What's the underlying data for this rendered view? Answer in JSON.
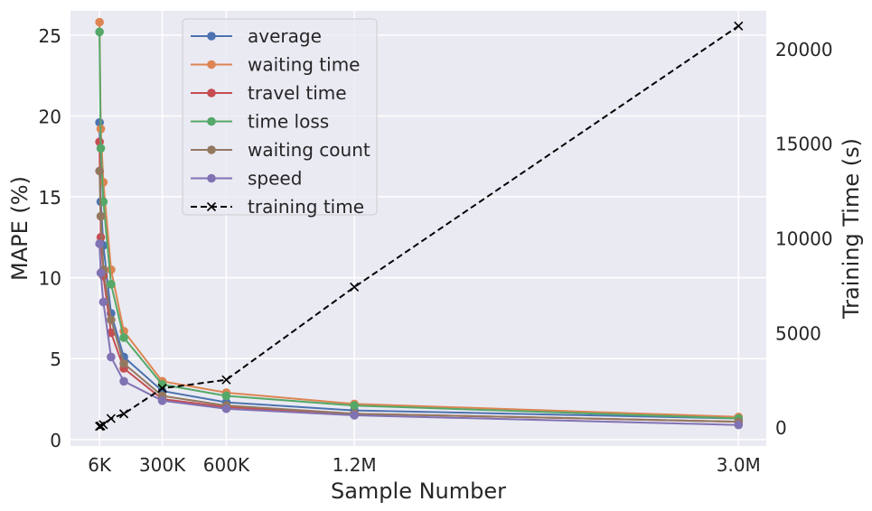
{
  "chart_data": {
    "type": "line",
    "title": "",
    "xlabel": "Sample Number",
    "ylabel": "MAPE (%)",
    "y2label": "Training Time (s)",
    "xlim": [
      -130000,
      3130000
    ],
    "ylim": [
      -0.4,
      26.5
    ],
    "y2lim": [
      -1000,
      22000
    ],
    "x_ticks": [
      {
        "value": 6000,
        "label": "6K"
      },
      {
        "value": 300000,
        "label": "300K"
      },
      {
        "value": 600000,
        "label": "600K"
      },
      {
        "value": 1200000,
        "label": "1.2M"
      },
      {
        "value": 3000000,
        "label": "3.0M"
      }
    ],
    "y_ticks": [
      0,
      5,
      10,
      15,
      20,
      25
    ],
    "y2_ticks": [
      0,
      5000,
      10000,
      15000,
      20000
    ],
    "grid": true,
    "legend_position": "top-left",
    "x": [
      6000,
      12000,
      24000,
      60000,
      120000,
      300000,
      600000,
      1200000,
      3000000
    ],
    "series": [
      {
        "name": "average",
        "axis": "left",
        "color": "#4c72b0",
        "marker": "o",
        "linestyle": "solid",
        "values": [
          19.6,
          14.7,
          12.0,
          7.8,
          5.1,
          3.0,
          2.3,
          1.8,
          1.3
        ]
      },
      {
        "name": "waiting time",
        "axis": "left",
        "color": "#dd8452",
        "marker": "o",
        "linestyle": "solid",
        "values": [
          25.8,
          19.2,
          15.9,
          10.5,
          6.7,
          3.6,
          2.9,
          2.2,
          1.4
        ]
      },
      {
        "name": "travel time",
        "axis": "left",
        "color": "#c44e52",
        "marker": "o",
        "linestyle": "solid",
        "values": [
          18.4,
          12.5,
          10.1,
          6.6,
          4.4,
          2.5,
          2.0,
          1.6,
          1.1
        ]
      },
      {
        "name": "time loss",
        "axis": "left",
        "color": "#55a868",
        "marker": "o",
        "linestyle": "solid",
        "values": [
          25.2,
          18.0,
          14.7,
          9.6,
          6.3,
          3.4,
          2.7,
          2.1,
          1.3
        ]
      },
      {
        "name": "waiting count",
        "axis": "left",
        "color": "#937860",
        "marker": "o",
        "linestyle": "solid",
        "values": [
          16.6,
          13.8,
          10.5,
          7.4,
          4.7,
          2.7,
          2.1,
          1.6,
          1.1
        ]
      },
      {
        "name": "speed",
        "axis": "left",
        "color": "#8172b3",
        "marker": "o",
        "linestyle": "solid",
        "values": [
          12.1,
          10.3,
          8.5,
          5.1,
          3.6,
          2.4,
          1.9,
          1.5,
          0.9
        ]
      },
      {
        "name": "training time",
        "axis": "right",
        "color": "#000000",
        "marker": "x",
        "linestyle": "dashed",
        "values": [
          40,
          60,
          130,
          450,
          700,
          2050,
          2500,
          7400,
          21200
        ]
      }
    ]
  }
}
